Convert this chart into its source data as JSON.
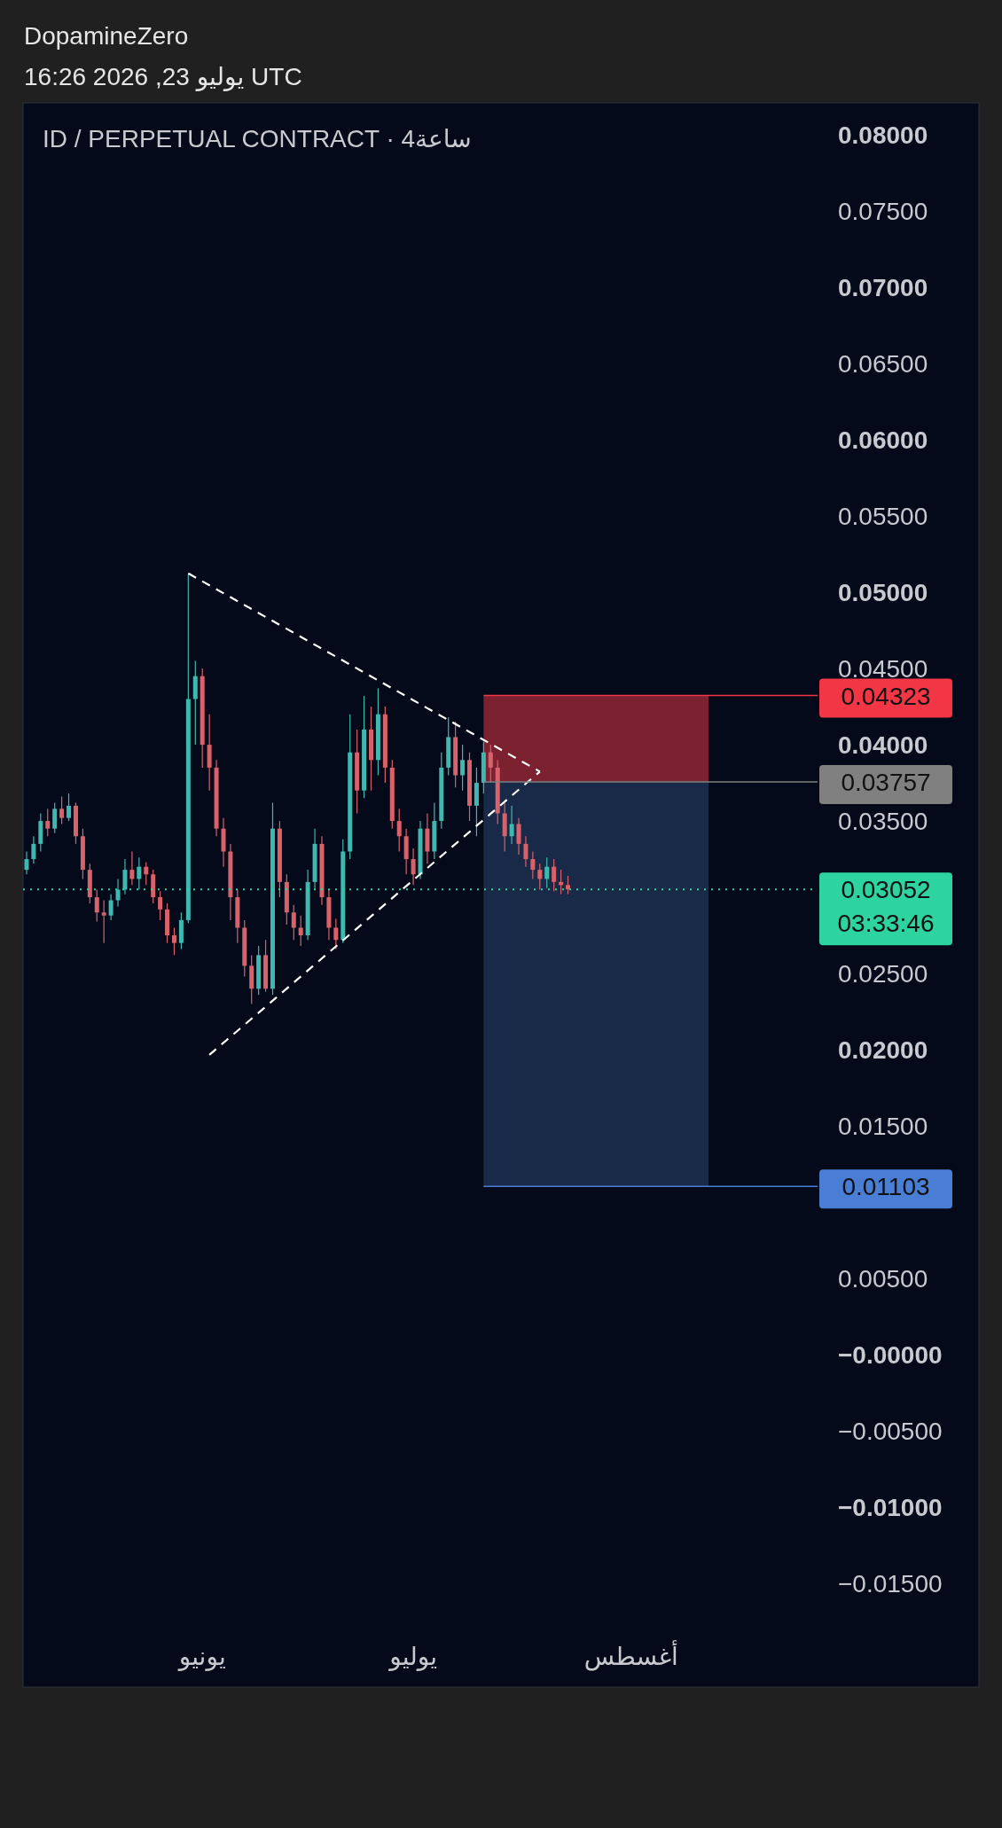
{
  "chart_data": {
    "type": "candlestick",
    "title": "DopamineZero",
    "subtitle": "16:26 2026 ,23 يوليو UTC",
    "annotations": [
      "ID / PERPETUAL CONTRACT · 4ساعة"
    ],
    "categories": [
      null,
      null,
      null,
      null,
      null,
      null,
      null,
      null,
      null,
      null,
      null,
      null,
      null,
      null,
      null,
      null,
      null,
      null,
      null,
      null,
      null,
      null,
      null,
      null,
      null,
      "يونيو",
      null,
      null,
      null,
      null,
      null,
      null,
      null,
      null,
      null,
      null,
      null,
      null,
      null,
      null,
      null,
      null,
      null,
      null,
      null,
      null,
      null,
      null,
      null,
      null,
      null,
      null,
      null,
      null,
      null,
      "يوليو",
      null,
      null,
      null,
      null,
      null,
      null,
      null,
      null,
      null,
      null,
      null,
      null,
      null,
      null,
      null,
      null,
      null,
      null,
      null,
      null,
      null,
      null,
      null,
      null,
      null,
      null,
      null,
      null,
      null,
      null,
      "أغسطس",
      null,
      null,
      null,
      null,
      null,
      null,
      null,
      null,
      null,
      null,
      null,
      null,
      null,
      null,
      null,
      null,
      null,
      null,
      null,
      null,
      null,
      null,
      null,
      null,
      null,
      null
    ],
    "ohlc": [
      [
        0.0318,
        0.033,
        0.0315,
        0.0325
      ],
      [
        0.0325,
        0.034,
        0.0322,
        0.0335
      ],
      [
        0.0335,
        0.0355,
        0.033,
        0.035
      ],
      [
        0.035,
        0.0358,
        0.034,
        0.0345
      ],
      [
        0.0345,
        0.0362,
        0.0342,
        0.0358
      ],
      [
        0.0358,
        0.0366,
        0.0348,
        0.0352
      ],
      [
        0.0352,
        0.0368,
        0.035,
        0.036
      ],
      [
        0.036,
        0.0362,
        0.0335,
        0.034
      ],
      [
        0.034,
        0.0345,
        0.0312,
        0.0318
      ],
      [
        0.0318,
        0.0322,
        0.0296,
        0.03
      ],
      [
        0.03,
        0.0305,
        0.0284,
        0.029
      ],
      [
        0.029,
        0.0298,
        0.027,
        0.0288
      ],
      [
        0.0288,
        0.0302,
        0.0285,
        0.0298
      ],
      [
        0.0298,
        0.0312,
        0.0294,
        0.0305
      ],
      [
        0.0305,
        0.0325,
        0.0302,
        0.0318
      ],
      [
        0.0318,
        0.033,
        0.0308,
        0.0312
      ],
      [
        0.0312,
        0.0326,
        0.0305,
        0.032
      ],
      [
        0.032,
        0.0323,
        0.0308,
        0.0315
      ],
      [
        0.0315,
        0.0318,
        0.0296,
        0.03
      ],
      [
        0.03,
        0.0304,
        0.0285,
        0.0292
      ],
      [
        0.0292,
        0.0296,
        0.027,
        0.0275
      ],
      [
        0.0275,
        0.028,
        0.0262,
        0.027
      ],
      [
        0.027,
        0.029,
        0.0266,
        0.0285
      ],
      [
        0.0285,
        0.0512,
        0.0283,
        0.043
      ],
      [
        0.043,
        0.0455,
        0.04,
        0.0445
      ],
      [
        0.0445,
        0.045,
        0.0385,
        0.04
      ],
      [
        0.04,
        0.042,
        0.037,
        0.0385
      ],
      [
        0.0385,
        0.039,
        0.034,
        0.0345
      ],
      [
        0.0345,
        0.0352,
        0.032,
        0.033
      ],
      [
        0.033,
        0.0335,
        0.0285,
        0.03
      ],
      [
        0.03,
        0.0305,
        0.027,
        0.028
      ],
      [
        0.028,
        0.0285,
        0.0248,
        0.0255
      ],
      [
        0.0255,
        0.0262,
        0.023,
        0.024
      ],
      [
        0.024,
        0.0268,
        0.0236,
        0.0262
      ],
      [
        0.0262,
        0.0272,
        0.0238,
        0.024
      ],
      [
        0.024,
        0.0362,
        0.0236,
        0.0345
      ],
      [
        0.0345,
        0.035,
        0.03,
        0.031
      ],
      [
        0.031,
        0.0315,
        0.0282,
        0.029
      ],
      [
        0.029,
        0.0295,
        0.0272,
        0.028
      ],
      [
        0.028,
        0.0288,
        0.0268,
        0.0275
      ],
      [
        0.0275,
        0.0318,
        0.0272,
        0.031
      ],
      [
        0.031,
        0.0345,
        0.0305,
        0.0335
      ],
      [
        0.0335,
        0.034,
        0.0295,
        0.03
      ],
      [
        0.03,
        0.0305,
        0.0272,
        0.028
      ],
      [
        0.028,
        0.0286,
        0.0266,
        0.0272
      ],
      [
        0.0272,
        0.0338,
        0.027,
        0.033
      ],
      [
        0.033,
        0.042,
        0.0325,
        0.0395
      ],
      [
        0.0395,
        0.041,
        0.0355,
        0.037
      ],
      [
        0.037,
        0.0432,
        0.0365,
        0.041
      ],
      [
        0.041,
        0.0425,
        0.037,
        0.039
      ],
      [
        0.039,
        0.0437,
        0.038,
        0.042
      ],
      [
        0.042,
        0.0425,
        0.0375,
        0.0385
      ],
      [
        0.0385,
        0.039,
        0.0345,
        0.035
      ],
      [
        0.035,
        0.0358,
        0.033,
        0.034
      ],
      [
        0.034,
        0.0345,
        0.0315,
        0.0325
      ],
      [
        0.0325,
        0.0332,
        0.0308,
        0.0315
      ],
      [
        0.0315,
        0.035,
        0.0312,
        0.0345
      ],
      [
        0.0345,
        0.0355,
        0.0322,
        0.033
      ],
      [
        0.033,
        0.0362,
        0.0325,
        0.035
      ],
      [
        0.035,
        0.0395,
        0.0345,
        0.0385
      ],
      [
        0.0385,
        0.0418,
        0.038,
        0.0405
      ],
      [
        0.0405,
        0.0415,
        0.0372,
        0.038
      ],
      [
        0.038,
        0.04,
        0.037,
        0.039
      ],
      [
        0.039,
        0.0395,
        0.035,
        0.036
      ],
      [
        0.036,
        0.0385,
        0.034,
        0.0375
      ],
      [
        0.0375,
        0.0402,
        0.0368,
        0.0395
      ],
      [
        0.0395,
        0.04,
        0.0375,
        0.0385
      ],
      [
        0.0385,
        0.039,
        0.0348,
        0.0355
      ],
      [
        0.0355,
        0.0362,
        0.033,
        0.034
      ],
      [
        0.034,
        0.036,
        0.0335,
        0.0348
      ],
      [
        0.0348,
        0.0352,
        0.0328,
        0.0335
      ],
      [
        0.0335,
        0.034,
        0.032,
        0.0325
      ],
      [
        0.0325,
        0.033,
        0.0312,
        0.0318
      ],
      [
        0.0318,
        0.0322,
        0.0305,
        0.0312
      ],
      [
        0.0312,
        0.0326,
        0.0306,
        0.032
      ],
      [
        0.032,
        0.0325,
        0.0304,
        0.031
      ],
      [
        0.031,
        0.0318,
        0.0302,
        0.0308
      ],
      [
        0.0308,
        0.0314,
        0.0302,
        0.03052
      ],
      null,
      null,
      null,
      null,
      null,
      null,
      null,
      null,
      null,
      null,
      null,
      null,
      null,
      null,
      null,
      null,
      null,
      null,
      null,
      null,
      null,
      null,
      null,
      null,
      null,
      null,
      null,
      null,
      null,
      null,
      null,
      null,
      null,
      null,
      null
    ],
    "series": [
      {
        "type": "line",
        "values": [
          null,
          null,
          null,
          null,
          null,
          null,
          null,
          null,
          null,
          null,
          null,
          null,
          null,
          null,
          null,
          null,
          null,
          null,
          null,
          null,
          null,
          null,
          null,
          0.05124,
          null,
          null,
          null,
          null,
          null,
          null,
          null,
          null,
          null,
          null,
          null,
          null,
          null,
          null,
          null,
          null,
          null,
          null,
          null,
          null,
          null,
          null,
          null,
          null,
          null,
          null,
          null,
          null,
          null,
          null,
          null,
          null,
          null,
          null,
          null,
          null,
          null,
          null,
          null,
          null,
          null,
          null,
          null,
          null,
          null,
          null,
          null,
          null,
          null,
          0.03824,
          null,
          null,
          null,
          null,
          null,
          null,
          null,
          null,
          null,
          null,
          null,
          null,
          null,
          null,
          null,
          null,
          null,
          null,
          null,
          null,
          null,
          null,
          null,
          null,
          null,
          null,
          null,
          null,
          null,
          null,
          null,
          null,
          null,
          null,
          null,
          null,
          null,
          null,
          null
        ],
        "color": "#ffffff",
        "line_style": "dashed"
      },
      {
        "type": "line",
        "values": [
          null,
          null,
          null,
          null,
          null,
          null,
          null,
          null,
          null,
          null,
          null,
          null,
          null,
          null,
          null,
          null,
          null,
          null,
          null,
          null,
          null,
          null,
          null,
          null,
          null,
          null,
          0.01966,
          null,
          null,
          null,
          null,
          null,
          null,
          null,
          null,
          null,
          null,
          null,
          null,
          null,
          null,
          null,
          null,
          null,
          null,
          null,
          null,
          null,
          null,
          null,
          null,
          null,
          null,
          null,
          null,
          null,
          null,
          null,
          null,
          null,
          null,
          null,
          null,
          null,
          null,
          null,
          null,
          null,
          null,
          null,
          null,
          null,
          null,
          0.03824,
          null,
          null,
          null,
          null,
          null,
          null,
          null,
          null,
          null,
          null,
          null,
          null,
          null,
          null,
          null,
          null,
          null,
          null,
          null,
          null,
          null,
          null,
          null,
          null,
          null,
          null,
          null,
          null,
          null,
          null,
          null,
          null,
          null,
          null,
          null,
          null,
          null,
          null,
          null
        ],
        "color": "#ffffff",
        "line_style": "dashed"
      }
    ],
    "bands": [
      {
        "axis": "y",
        "from": 0.03757,
        "to": 0.04323,
        "color": "#8a2433"
      },
      {
        "axis": "y",
        "from": 0.01103,
        "to": 0.03757,
        "color": "#1c2c4e"
      }
    ],
    "ref_lines": [
      {
        "axis": "y",
        "value": 0.04323,
        "label": "0.04323",
        "color": "#f23645"
      },
      {
        "axis": "y",
        "value": 0.03757,
        "label": "0.03757",
        "color": "#808080"
      },
      {
        "axis": "y",
        "value": 0.03052,
        "label": "0.03052\n03:33:46",
        "color": "#2ed49f",
        "line_style": "dotted"
      },
      {
        "axis": "y",
        "value": 0.01103,
        "label": "0.01103",
        "color": "#4a7dd4"
      }
    ],
    "ylim": [
      -0.0218,
      0.0821
    ],
    "yticks": [
      {
        "value": -0.015,
        "label": "−0.01500"
      },
      {
        "value": -0.01,
        "label": "−0.01000"
      },
      {
        "value": -0.005,
        "label": "−0.00500"
      },
      {
        "value": 0,
        "label": "−0.00000"
      },
      {
        "value": 0.005,
        "label": "0.00500"
      },
      {
        "value": 0.015,
        "label": "0.01500"
      },
      {
        "value": 0.02,
        "label": "0.02000"
      },
      {
        "value": 0.025,
        "label": "0.02500"
      },
      {
        "value": 0.035,
        "label": "0.03500"
      },
      {
        "value": 0.04,
        "label": "0.04000"
      },
      {
        "value": 0.045,
        "label": "0.04500"
      },
      {
        "value": 0.05,
        "label": "0.05000"
      },
      {
        "value": 0.055,
        "label": "0.05500"
      },
      {
        "value": 0.06,
        "label": "0.06000"
      },
      {
        "value": 0.065,
        "label": "0.06500"
      },
      {
        "value": 0.07,
        "label": "0.07000"
      },
      {
        "value": 0.075,
        "label": "0.07500"
      },
      {
        "value": 0.08,
        "label": "0.08000"
      }
    ],
    "grid": false
  }
}
